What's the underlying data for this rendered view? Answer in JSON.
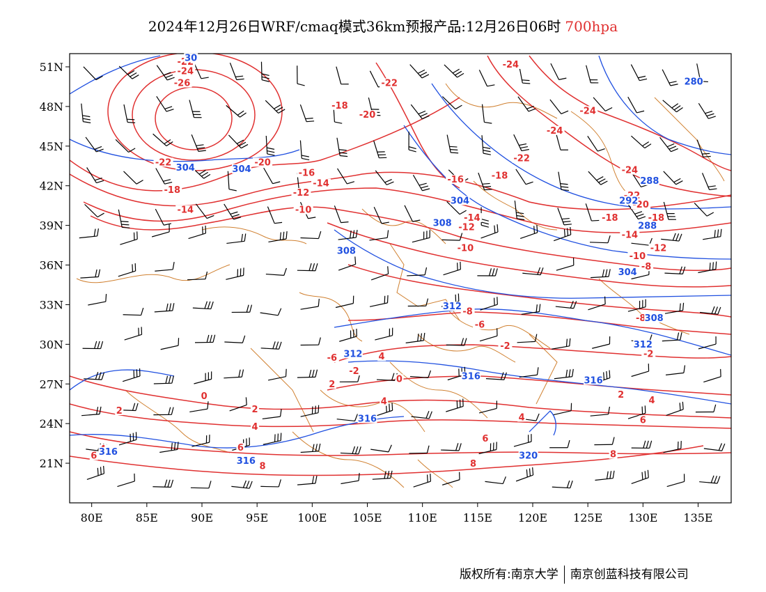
{
  "title": {
    "main": "2024年12月26日WRF/cmaq模式36km预报产品:12月26日06时",
    "level": "700hpa",
    "level_color": "#e03030"
  },
  "map": {
    "lon_range": [
      78,
      138
    ],
    "lat_range": [
      18,
      52
    ],
    "lon_ticks": [
      {
        "value": 80,
        "label": "80E"
      },
      {
        "value": 85,
        "label": "85E"
      },
      {
        "value": 90,
        "label": "90E"
      },
      {
        "value": 95,
        "label": "95E"
      },
      {
        "value": 100,
        "label": "100E"
      },
      {
        "value": 105,
        "label": "105E"
      },
      {
        "value": 110,
        "label": "110E"
      },
      {
        "value": 115,
        "label": "115E"
      },
      {
        "value": 120,
        "label": "120E"
      },
      {
        "value": 125,
        "label": "125E"
      },
      {
        "value": 130,
        "label": "130E"
      },
      {
        "value": 135,
        "label": "135E"
      }
    ],
    "lat_ticks": [
      {
        "value": 21,
        "label": "21N"
      },
      {
        "value": 24,
        "label": "24N"
      },
      {
        "value": 27,
        "label": "27N"
      },
      {
        "value": 30,
        "label": "30N"
      },
      {
        "value": 33,
        "label": "33N"
      },
      {
        "value": 36,
        "label": "36N"
      },
      {
        "value": 39,
        "label": "39N"
      },
      {
        "value": 42,
        "label": "42N"
      },
      {
        "value": 45,
        "label": "45N"
      },
      {
        "value": 48,
        "label": "48N"
      },
      {
        "value": 51,
        "label": "51N"
      }
    ],
    "temperature_color": "#e03030",
    "height_color": "#2050e0",
    "border_color": "#d08030",
    "temperature_labels": [
      {
        "text": "-22",
        "lon": 88.5,
        "lat": 51.2
      },
      {
        "text": "-24",
        "lon": 88.5,
        "lat": 50.5
      },
      {
        "text": "-26",
        "lon": 88.2,
        "lat": 49.6
      },
      {
        "text": "-22",
        "lon": 107.0,
        "lat": 49.6
      },
      {
        "text": "-18",
        "lon": 102.5,
        "lat": 47.9
      },
      {
        "text": "-20",
        "lon": 105.0,
        "lat": 47.2
      },
      {
        "text": "-24",
        "lon": 118.0,
        "lat": 51.0
      },
      {
        "text": "-24",
        "lon": 125.0,
        "lat": 47.5
      },
      {
        "text": "-24",
        "lon": 122.0,
        "lat": 46.0
      },
      {
        "text": "-22",
        "lon": 119.0,
        "lat": 43.9
      },
      {
        "text": "-22",
        "lon": 86.5,
        "lat": 43.6
      },
      {
        "text": "-20",
        "lon": 95.5,
        "lat": 43.6
      },
      {
        "text": "-16",
        "lon": 99.5,
        "lat": 42.8
      },
      {
        "text": "-14",
        "lon": 100.8,
        "lat": 42.0
      },
      {
        "text": "-18",
        "lon": 87.3,
        "lat": 41.5
      },
      {
        "text": "-12",
        "lon": 99.0,
        "lat": 41.3
      },
      {
        "text": "-14",
        "lon": 88.5,
        "lat": 40.0
      },
      {
        "text": "-10",
        "lon": 99.2,
        "lat": 40.0
      },
      {
        "text": "-16",
        "lon": 113.0,
        "lat": 42.3
      },
      {
        "text": "-18",
        "lon": 117.0,
        "lat": 42.6
      },
      {
        "text": "-14",
        "lon": 114.5,
        "lat": 39.4
      },
      {
        "text": "-12",
        "lon": 114.0,
        "lat": 38.7
      },
      {
        "text": "-10",
        "lon": 113.9,
        "lat": 37.1
      },
      {
        "text": "-24",
        "lon": 128.8,
        "lat": 43.0
      },
      {
        "text": "-22",
        "lon": 129.0,
        "lat": 41.1
      },
      {
        "text": "-20",
        "lon": 129.8,
        "lat": 40.4
      },
      {
        "text": "-18",
        "lon": 127.0,
        "lat": 39.4
      },
      {
        "text": "-18",
        "lon": 131.2,
        "lat": 39.4
      },
      {
        "text": "-14",
        "lon": 128.8,
        "lat": 38.1
      },
      {
        "text": "-12",
        "lon": 131.4,
        "lat": 37.1
      },
      {
        "text": "-10",
        "lon": 129.5,
        "lat": 36.5
      },
      {
        "text": "-8",
        "lon": 130.3,
        "lat": 35.7
      },
      {
        "text": "-8",
        "lon": 114.1,
        "lat": 32.3
      },
      {
        "text": "-6",
        "lon": 115.2,
        "lat": 31.3
      },
      {
        "text": "-8",
        "lon": 129.8,
        "lat": 31.8
      },
      {
        "text": "-2",
        "lon": 117.5,
        "lat": 29.7
      },
      {
        "text": "-2",
        "lon": 130.5,
        "lat": 29.1
      },
      {
        "text": "-6",
        "lon": 101.8,
        "lat": 28.8
      },
      {
        "text": "4",
        "lon": 106.3,
        "lat": 28.9
      },
      {
        "text": "-2",
        "lon": 103.8,
        "lat": 27.8
      },
      {
        "text": "0",
        "lon": 107.9,
        "lat": 27.2
      },
      {
        "text": "2",
        "lon": 101.8,
        "lat": 26.8
      },
      {
        "text": "0",
        "lon": 90.2,
        "lat": 25.9
      },
      {
        "text": "2",
        "lon": 82.5,
        "lat": 24.8
      },
      {
        "text": "2",
        "lon": 94.8,
        "lat": 24.9
      },
      {
        "text": "4",
        "lon": 94.8,
        "lat": 23.6
      },
      {
        "text": "4",
        "lon": 106.5,
        "lat": 25.5
      },
      {
        "text": "4",
        "lon": 119.0,
        "lat": 24.3
      },
      {
        "text": "2",
        "lon": 128.0,
        "lat": 26.0
      },
      {
        "text": "4",
        "lon": 130.8,
        "lat": 25.6
      },
      {
        "text": "6",
        "lon": 130.0,
        "lat": 24.1
      },
      {
        "text": "6",
        "lon": 93.5,
        "lat": 22.0
      },
      {
        "text": "6",
        "lon": 115.7,
        "lat": 22.7
      },
      {
        "text": "4",
        "lon": 81.0,
        "lat": 21.9
      },
      {
        "text": "6",
        "lon": 80.2,
        "lat": 21.4
      },
      {
        "text": "8",
        "lon": 95.5,
        "lat": 20.6
      },
      {
        "text": "8",
        "lon": 114.6,
        "lat": 20.8
      },
      {
        "text": "8",
        "lon": 127.3,
        "lat": 21.5
      }
    ],
    "height_labels": [
      {
        "text": "30",
        "lon": 89.0,
        "lat": 51.5
      },
      {
        "text": "304",
        "lon": 88.5,
        "lat": 43.2
      },
      {
        "text": "304",
        "lon": 93.6,
        "lat": 43.1
      },
      {
        "text": "280",
        "lon": 134.6,
        "lat": 49.7
      },
      {
        "text": "288",
        "lon": 130.6,
        "lat": 42.2
      },
      {
        "text": "292",
        "lon": 128.7,
        "lat": 40.7
      },
      {
        "text": "288",
        "lon": 130.4,
        "lat": 38.8
      },
      {
        "text": "304",
        "lon": 113.4,
        "lat": 40.7
      },
      {
        "text": "308",
        "lon": 111.8,
        "lat": 39.0
      },
      {
        "text": "308",
        "lon": 103.1,
        "lat": 36.9
      },
      {
        "text": "304",
        "lon": 128.6,
        "lat": 35.3
      },
      {
        "text": "312",
        "lon": 112.7,
        "lat": 32.7
      },
      {
        "text": "308",
        "lon": 131.0,
        "lat": 31.8
      },
      {
        "text": "312",
        "lon": 103.7,
        "lat": 29.1
      },
      {
        "text": "312",
        "lon": 130.0,
        "lat": 29.8
      },
      {
        "text": "316",
        "lon": 114.4,
        "lat": 27.4
      },
      {
        "text": "316",
        "lon": 125.5,
        "lat": 27.1
      },
      {
        "text": "316",
        "lon": 105.0,
        "lat": 24.2
      },
      {
        "text": "316",
        "lon": 81.5,
        "lat": 21.7
      },
      {
        "text": "316",
        "lon": 94.0,
        "lat": 21.0
      },
      {
        "text": "320",
        "lon": 119.6,
        "lat": 21.4
      }
    ]
  },
  "footer": {
    "left": "版权所有:南京大学",
    "right": "南京创蓝科技有限公司"
  }
}
